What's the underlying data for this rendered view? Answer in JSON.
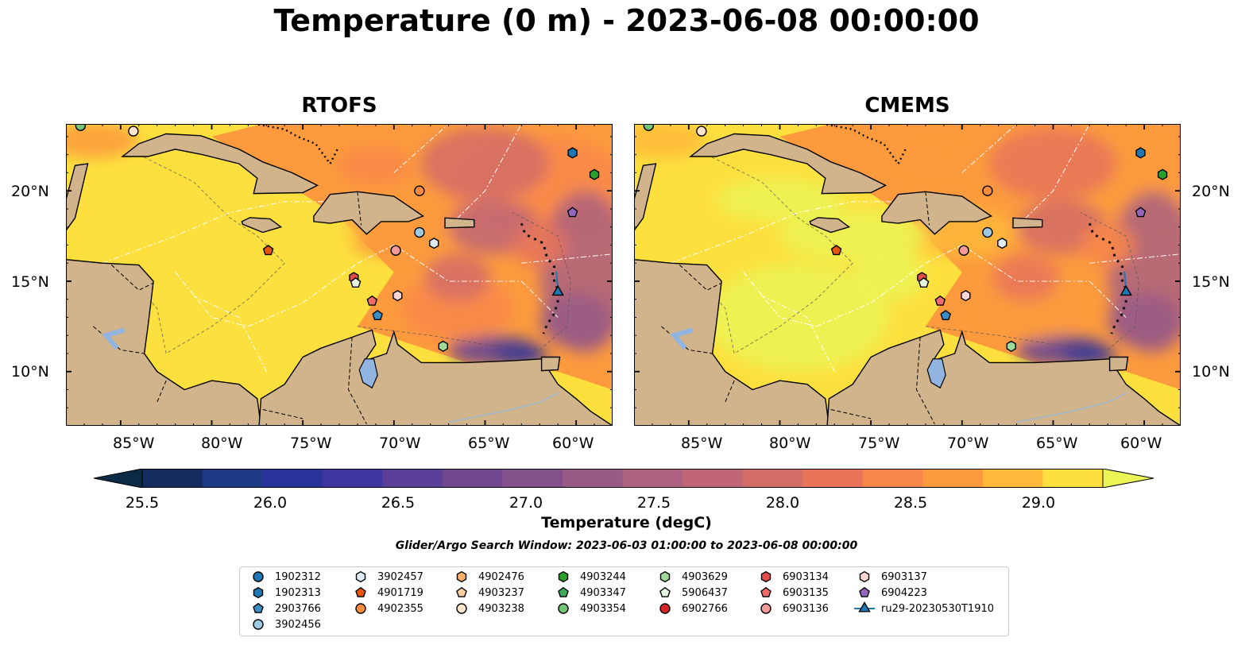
{
  "title": "Temperature (0 m) - 2023-06-08 00:00:00",
  "panels": [
    {
      "title": "RTOFS"
    },
    {
      "title": "CMEMS"
    }
  ],
  "axes": {
    "lon_labels": [
      "85°W",
      "80°W",
      "75°W",
      "70°W",
      "65°W",
      "60°W"
    ],
    "lat_labels": [
      "20°N",
      "15°N",
      "10°N"
    ],
    "lon_range": [
      -88,
      -58
    ],
    "lat_range": [
      7,
      23.7
    ]
  },
  "colorbar": {
    "title": "Temperature (degC)",
    "tick_labels": [
      "25.5",
      "26.0",
      "26.5",
      "27.0",
      "27.5",
      "28.0",
      "28.5",
      "29.0"
    ],
    "range": [
      25.25,
      29.25
    ],
    "step": 0.25,
    "colors": [
      "#0a2a45",
      "#142c5e",
      "#1d3a85",
      "#29349a",
      "#3d379f",
      "#5a3f98",
      "#70468e",
      "#84508b",
      "#985a86",
      "#ab617f",
      "#c06676",
      "#d46d68",
      "#e8755a",
      "#f8874a",
      "#fc9a3d",
      "#feb83a",
      "#fde03e",
      "#ecf355"
    ],
    "land_color": "#d1b48c",
    "lake_color": "#92b4e0"
  },
  "search_window": "Glider/Argo Search Window: 2023-06-03 01:00:00 to 2023-06-08 00:00:00",
  "legend": [
    {
      "label": "1902312",
      "marker": "circle",
      "color": "#1f77b4"
    },
    {
      "label": "1902313",
      "marker": "hexagon",
      "color": "#1f77b4"
    },
    {
      "label": "2903766",
      "marker": "pentagon",
      "color": "#3a8cc4"
    },
    {
      "label": "3902456",
      "marker": "circle",
      "color": "#9ecae1"
    },
    {
      "label": "3902457",
      "marker": "hexagon",
      "color": "#deebf7"
    },
    {
      "label": "4901719",
      "marker": "pentagon",
      "color": "#e6550d"
    },
    {
      "label": "4902355",
      "marker": "circle",
      "color": "#fd8d3c"
    },
    {
      "label": "4902476",
      "marker": "hexagon",
      "color": "#fdae6b"
    },
    {
      "label": "4903237",
      "marker": "pentagon",
      "color": "#fdd0a2"
    },
    {
      "label": "4903238",
      "marker": "circle",
      "color": "#fee6ce"
    },
    {
      "label": "4903244",
      "marker": "hexagon",
      "color": "#2ca02c"
    },
    {
      "label": "4903347",
      "marker": "pentagon",
      "color": "#41ab5d"
    },
    {
      "label": "4903354",
      "marker": "circle",
      "color": "#74c476"
    },
    {
      "label": "4903629",
      "marker": "hexagon",
      "color": "#a1d99b"
    },
    {
      "label": "5906437",
      "marker": "pentagon",
      "color": "#e5f5e0"
    },
    {
      "label": "6902766",
      "marker": "circle",
      "color": "#d62728"
    },
    {
      "label": "6903134",
      "marker": "hexagon",
      "color": "#e34a4a"
    },
    {
      "label": "6903135",
      "marker": "pentagon",
      "color": "#f06c6c"
    },
    {
      "label": "6903136",
      "marker": "circle",
      "color": "#f59a9a"
    },
    {
      "label": "6903137",
      "marker": "hexagon",
      "color": "#fcd5d5"
    },
    {
      "label": "6904223",
      "marker": "pentagon",
      "color": "#9467bd"
    },
    {
      "label": "ru29-20230530T1910",
      "marker": "triangle",
      "color": "#1f77b4"
    }
  ],
  "platforms": [
    {
      "marker": "circle",
      "color": "#74c476",
      "lon": -87.2,
      "lat": 23.6
    },
    {
      "marker": "circle",
      "color": "#fee6ce",
      "lon": -84.3,
      "lat": 23.3
    },
    {
      "marker": "hexagon",
      "color": "#1f77b4",
      "lon": -60.2,
      "lat": 22.1
    },
    {
      "marker": "hexagon",
      "color": "#2ca02c",
      "lon": -59.0,
      "lat": 20.9
    },
    {
      "marker": "circle",
      "color": "#fd8d3c",
      "lon": -68.6,
      "lat": 20.0
    },
    {
      "marker": "pentagon",
      "color": "#9467bd",
      "lon": -60.2,
      "lat": 18.8
    },
    {
      "marker": "circle",
      "color": "#9ecae1",
      "lon": -68.6,
      "lat": 17.7
    },
    {
      "marker": "hexagon",
      "color": "#deebf7",
      "lon": -67.8,
      "lat": 17.1
    },
    {
      "marker": "pentagon",
      "color": "#e6550d",
      "lon": -76.9,
      "lat": 16.7
    },
    {
      "marker": "circle",
      "color": "#f59a9a",
      "lon": -69.9,
      "lat": 16.7
    },
    {
      "marker": "hexagon",
      "color": "#e34a4a",
      "lon": -72.2,
      "lat": 15.2
    },
    {
      "marker": "pentagon",
      "color": "#e5f5e0",
      "lon": -72.1,
      "lat": 14.9
    },
    {
      "marker": "hexagon",
      "color": "#fcd5d5",
      "lon": -69.8,
      "lat": 14.2
    },
    {
      "marker": "pentagon",
      "color": "#f06c6c",
      "lon": -71.2,
      "lat": 13.9
    },
    {
      "marker": "pentagon",
      "color": "#3a8cc4",
      "lon": -70.9,
      "lat": 13.1
    },
    {
      "marker": "hexagon",
      "color": "#a1d99b",
      "lon": -67.3,
      "lat": 11.4
    },
    {
      "marker": "triangle",
      "color": "#1f77b4",
      "lon": -61.0,
      "lat": 14.4
    }
  ]
}
